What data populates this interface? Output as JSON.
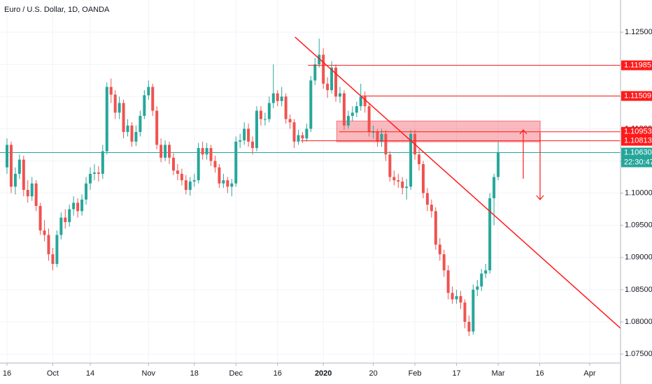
{
  "chart_data": {
    "type": "candlestick",
    "title": "Euro / U.S. Dollar, 1D, OANDA",
    "up_color": "#26a69a",
    "down_color": "#ef5350",
    "level_color": "#ff1a1a",
    "grid": true,
    "xlim": [
      -1.68,
      147.4
    ],
    "ylim": [
      1.0736,
      1.13
    ],
    "xticks": [
      {
        "value": 0,
        "label": "16"
      },
      {
        "value": 11,
        "label": "Oct"
      },
      {
        "value": 20,
        "label": "14"
      },
      {
        "value": 34,
        "label": "Nov"
      },
      {
        "value": 45,
        "label": "18"
      },
      {
        "value": 55,
        "label": "Dec"
      },
      {
        "value": 65,
        "label": "16"
      },
      {
        "value": 76,
        "label": "2020"
      },
      {
        "value": 88,
        "label": "20"
      },
      {
        "value": 98,
        "label": "Feb"
      },
      {
        "value": 108,
        "label": "17"
      },
      {
        "value": 118,
        "label": "Mar"
      },
      {
        "value": 128,
        "label": "16"
      },
      {
        "value": 140,
        "label": "Apr"
      }
    ],
    "yticks": [
      {
        "value": 1.125,
        "label": "1.12500"
      },
      {
        "value": 1.12,
        "label": "1.12000"
      },
      {
        "value": 1.115,
        "label": "1.11500"
      },
      {
        "value": 1.11,
        "label": "1.11000"
      },
      {
        "value": 1.105,
        "label": "1.10500"
      },
      {
        "value": 1.1,
        "label": "1.10000"
      },
      {
        "value": 1.095,
        "label": "1.09500"
      },
      {
        "value": 1.09,
        "label": "1.09000"
      },
      {
        "value": 1.085,
        "label": "1.08500"
      },
      {
        "value": 1.08,
        "label": "1.08000"
      },
      {
        "value": 1.075,
        "label": "1.07500"
      }
    ],
    "levels": [
      1.11985,
      1.11509,
      1.10953,
      1.10813
    ],
    "last_price": {
      "value": 1.1063,
      "label": "1.10630"
    },
    "countdown": "22:30:47",
    "open": [
      1.104,
      1.1075,
      1.101,
      1.103,
      1.1052,
      1.1005,
      1.0995,
      1.1015,
      1.098,
      1.0942,
      1.0935,
      1.0905,
      1.089,
      1.0935,
      1.0962,
      1.0955,
      1.0975,
      1.0985,
      1.0972,
      1.099,
      1.1015,
      1.103,
      1.1032,
      1.103,
      1.1065,
      1.1165,
      1.1153,
      1.1125,
      1.114,
      1.1095,
      1.1105,
      1.108,
      1.1095,
      1.112,
      1.1152,
      1.1165,
      1.1128,
      1.1075,
      1.1055,
      1.1075,
      1.1055,
      1.1035,
      1.103,
      1.102,
      1.1005,
      1.1018,
      1.102,
      1.107,
      1.106,
      1.107,
      1.105,
      1.104,
      1.1015,
      1.102,
      1.101,
      1.1015,
      1.108,
      1.1082,
      1.11,
      1.108,
      1.107,
      1.1128,
      1.1115,
      1.1115,
      1.114,
      1.1155,
      1.1143,
      1.115,
      1.1115,
      1.111,
      1.108,
      1.109,
      1.1085,
      1.11,
      1.1175,
      1.12,
      1.1215,
      1.117,
      1.116,
      1.1195,
      1.115,
      1.1155,
      1.1105,
      1.112,
      1.1125,
      1.1135,
      1.115,
      1.1135,
      1.1095,
      1.1095,
      1.108,
      1.1092,
      1.106,
      1.1025,
      1.102,
      1.1018,
      1.1008,
      1.101,
      1.1092,
      1.106,
      1.1045,
      1.1,
      1.0982,
      1.0972,
      1.092,
      1.0905,
      1.088,
      1.0845,
      1.0835,
      1.084,
      1.083,
      1.08,
      1.0785,
      1.085,
      1.0855,
      1.0875,
      1.088,
      1.0992,
      1.1025
    ],
    "high": [
      1.1085,
      1.108,
      1.104,
      1.106,
      1.1058,
      1.102,
      1.1025,
      1.102,
      1.0985,
      1.0958,
      1.0945,
      1.0915,
      1.0942,
      1.097,
      1.0975,
      1.0982,
      1.0995,
      1.0992,
      1.0998,
      1.1025,
      1.104,
      1.1045,
      1.1042,
      1.1075,
      1.1172,
      1.1178,
      1.116,
      1.115,
      1.1145,
      1.1115,
      1.111,
      1.1105,
      1.1128,
      1.116,
      1.1175,
      1.117,
      1.1135,
      1.1085,
      1.1082,
      1.108,
      1.1062,
      1.1045,
      1.1038,
      1.1028,
      1.1025,
      1.103,
      1.1078,
      1.108,
      1.1078,
      1.1075,
      1.1058,
      1.1045,
      1.103,
      1.1025,
      1.1022,
      1.1088,
      1.1092,
      1.111,
      1.1108,
      1.1088,
      1.1135,
      1.1135,
      1.1125,
      1.115,
      1.12,
      1.116,
      1.1165,
      1.1155,
      1.1122,
      1.1115,
      1.1098,
      1.1095,
      1.1108,
      1.1182,
      1.121,
      1.124,
      1.1225,
      1.118,
      1.1205,
      1.12,
      1.1165,
      1.116,
      1.1128,
      1.1135,
      1.1142,
      1.117,
      1.1158,
      1.114,
      1.1105,
      1.11,
      1.11,
      1.1098,
      1.1065,
      1.1035,
      1.103,
      1.1025,
      1.1022,
      1.1098,
      1.1098,
      1.1068,
      1.105,
      1.1008,
      1.099,
      1.0978,
      1.093,
      1.0912,
      1.0888,
      1.0855,
      1.085,
      1.0848,
      1.0835,
      1.081,
      1.0858,
      1.0865,
      1.0882,
      1.089,
      1.1,
      1.103,
      1.108
    ],
    "low": [
      1.103,
      1.1,
      1.0998,
      1.1022,
      1.0995,
      1.0985,
      1.0988,
      1.0972,
      1.0935,
      1.0925,
      1.0895,
      1.088,
      1.0885,
      1.0928,
      1.0945,
      1.0948,
      1.0965,
      1.0962,
      1.0965,
      1.0982,
      1.1005,
      1.102,
      1.1018,
      1.1022,
      1.106,
      1.114,
      1.1115,
      1.1115,
      1.1085,
      1.1088,
      1.1072,
      1.1073,
      1.1088,
      1.1115,
      1.1145,
      1.112,
      1.1068,
      1.1048,
      1.105,
      1.1045,
      1.1028,
      1.102,
      1.1012,
      1.0998,
      1.0996,
      1.101,
      1.1015,
      1.1052,
      1.1052,
      1.1042,
      1.1032,
      1.1008,
      1.1008,
      1.1,
      1.0995,
      1.101,
      1.107,
      1.1075,
      1.1072,
      1.106,
      1.1065,
      1.1105,
      1.1105,
      1.111,
      1.1132,
      1.1135,
      1.1135,
      1.1108,
      1.11,
      1.107,
      1.1075,
      1.1078,
      1.108,
      1.1095,
      1.1168,
      1.1195,
      1.1162,
      1.1148,
      1.1155,
      1.1142,
      1.114,
      1.1098,
      1.11,
      1.1112,
      1.1118,
      1.1128,
      1.1125,
      1.1088,
      1.1085,
      1.1072,
      1.1072,
      1.105,
      1.1018,
      1.1012,
      1.1008,
      1.0998,
      1.099,
      1.1005,
      1.1052,
      1.1035,
      1.0992,
      1.0972,
      1.0962,
      1.0912,
      1.0895,
      1.087,
      1.0835,
      1.0828,
      1.0828,
      1.082,
      1.079,
      1.0778,
      1.078,
      1.084,
      1.0848,
      1.0868,
      1.0875,
      1.095,
      1.102
    ],
    "close": [
      1.1075,
      1.101,
      1.103,
      1.1052,
      1.1005,
      1.0995,
      1.1015,
      1.098,
      1.0942,
      1.0935,
      1.0905,
      1.089,
      1.0935,
      1.0962,
      1.0955,
      1.0975,
      1.0985,
      1.0972,
      1.099,
      1.1015,
      1.103,
      1.1032,
      1.103,
      1.1065,
      1.1165,
      1.1153,
      1.1125,
      1.114,
      1.1095,
      1.1105,
      1.108,
      1.1095,
      1.112,
      1.1152,
      1.1165,
      1.1128,
      1.1075,
      1.1055,
      1.1075,
      1.1055,
      1.1035,
      1.103,
      1.102,
      1.1005,
      1.1018,
      1.102,
      1.107,
      1.106,
      1.107,
      1.105,
      1.104,
      1.1015,
      1.102,
      1.101,
      1.1015,
      1.108,
      1.1082,
      1.11,
      1.108,
      1.107,
      1.1128,
      1.1115,
      1.1115,
      1.114,
      1.1155,
      1.1143,
      1.115,
      1.1115,
      1.111,
      1.108,
      1.109,
      1.1085,
      1.11,
      1.1175,
      1.12,
      1.1215,
      1.117,
      1.116,
      1.1195,
      1.115,
      1.1155,
      1.1105,
      1.112,
      1.1125,
      1.1135,
      1.115,
      1.1135,
      1.1095,
      1.1095,
      1.108,
      1.1092,
      1.106,
      1.1025,
      1.102,
      1.1018,
      1.1008,
      1.101,
      1.1092,
      1.106,
      1.1045,
      1.1,
      1.0982,
      1.0972,
      1.092,
      1.0905,
      1.088,
      1.0845,
      1.0835,
      1.084,
      1.083,
      1.08,
      1.0785,
      1.085,
      1.0855,
      1.0875,
      1.088,
      1.0992,
      1.1025,
      1.1063
    ]
  }
}
